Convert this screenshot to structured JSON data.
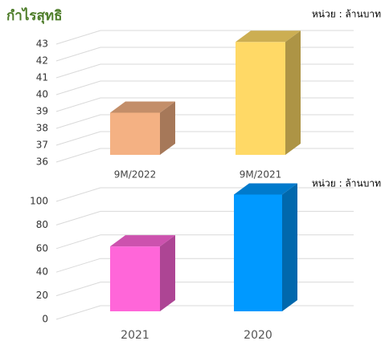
{
  "chart_data": [
    {
      "type": "bar3d",
      "title": "กำไรสุทธิ",
      "unit_label": "หน่วย : ล้านบาท",
      "categories": [
        "9M/2022",
        "9M/2021"
      ],
      "values": [
        38.5,
        42.7
      ],
      "colors": [
        "#f4b183",
        "#ffd966"
      ],
      "ylim": [
        36,
        43
      ],
      "yticks": [
        36,
        37,
        38,
        39,
        40,
        41,
        42,
        43
      ],
      "grid": true
    },
    {
      "type": "bar3d",
      "unit_label": "หน่วย : ล้านบาท",
      "categories": [
        "2021",
        "2020"
      ],
      "values": [
        55,
        99
      ],
      "colors": [
        "#ff66d9",
        "#0099ff"
      ],
      "ylim": [
        0,
        100
      ],
      "yticks": [
        0,
        20,
        40,
        60,
        80,
        100
      ],
      "grid": true
    }
  ]
}
